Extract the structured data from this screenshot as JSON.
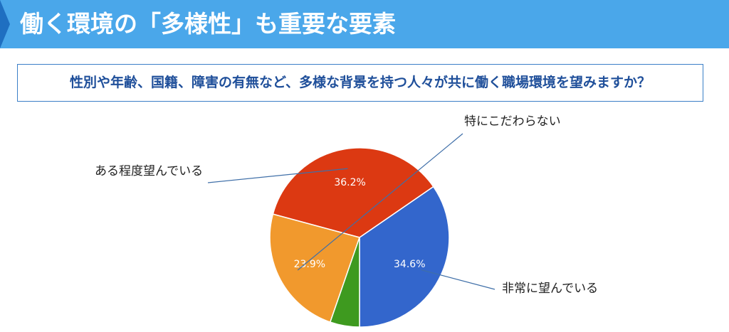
{
  "header": {
    "title": "働く環境の「多様性」も重要な要素"
  },
  "question": {
    "text": "性別や年齢、国籍、障害の有無など、多様な背景を持つ人々が共に働く職場環境を望みますか？"
  },
  "chart_data": {
    "type": "pie",
    "slices": [
      {
        "label": "非常に望んでいる",
        "value": 34.6,
        "display": "34.6%",
        "color": "#3366cc"
      },
      {
        "label": "ある程度望んでいる",
        "value": 36.2,
        "display": "36.2%",
        "color": "#dc3912"
      },
      {
        "label": "特にこだわらない",
        "value": 23.9,
        "display": "23.9%",
        "color": "#f1992d"
      },
      {
        "label": "",
        "value": 5.3,
        "display": "",
        "color": "#3e9a1f"
      }
    ]
  }
}
